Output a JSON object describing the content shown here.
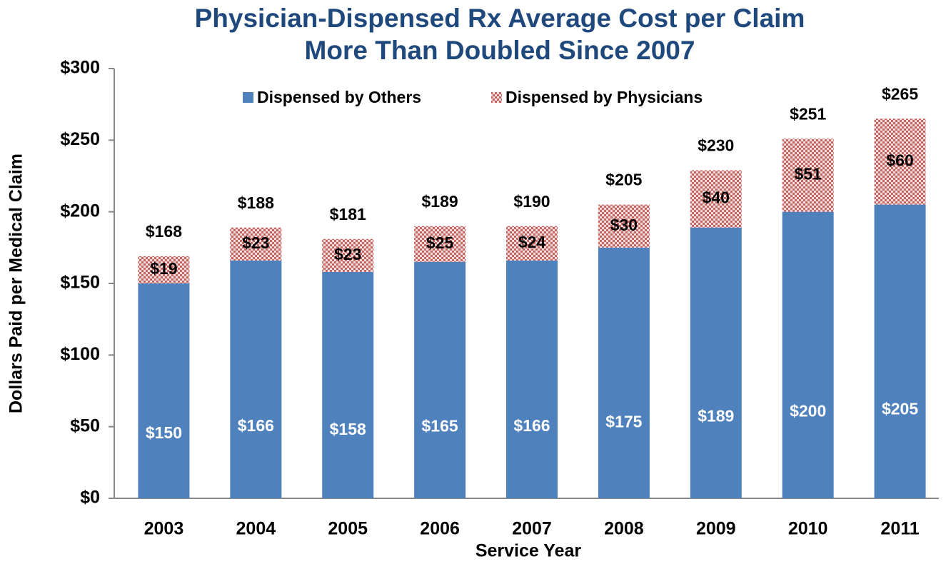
{
  "chart_data": {
    "type": "stacked-bar",
    "title": [
      "Physician-Dispensed Rx Average Cost per Claim",
      "More Than Doubled Since 2007"
    ],
    "xlabel": "Service Year",
    "ylabel": "Dollars Paid per Medical Claim",
    "categories": [
      "2003",
      "2004",
      "2005",
      "2006",
      "2007",
      "2008",
      "2009",
      "2010",
      "2011"
    ],
    "series": [
      {
        "name": "Dispensed by Others",
        "color": "#4f81bd",
        "values": [
          150,
          166,
          158,
          165,
          166,
          175,
          189,
          200,
          205
        ],
        "value_labels": [
          "$150",
          "$166",
          "$158",
          "$165",
          "$166",
          "$175",
          "$189",
          "$200",
          "$205"
        ]
      },
      {
        "name": "Dispensed by Physicians",
        "color": "#c0504d",
        "values": [
          19,
          23,
          23,
          25,
          24,
          30,
          40,
          51,
          60
        ],
        "value_labels": [
          "$19",
          "$23",
          "$23",
          "$25",
          "$24",
          "$30",
          "$40",
          "$51",
          "$60"
        ]
      }
    ],
    "totals": [
      168,
      188,
      181,
      189,
      190,
      205,
      230,
      251,
      265
    ],
    "total_labels": [
      "$168",
      "$188",
      "$181",
      "$189",
      "$190",
      "$205",
      "$230",
      "$251",
      "$265"
    ],
    "ylim": [
      0,
      300
    ],
    "yticks": [
      {
        "value": 0,
        "label": "$0"
      },
      {
        "value": 50,
        "label": "$50"
      },
      {
        "value": 100,
        "label": "$100"
      },
      {
        "value": 150,
        "label": "$150"
      },
      {
        "value": 200,
        "label": "$200"
      },
      {
        "value": 250,
        "label": "$250"
      },
      {
        "value": 300,
        "label": "$300"
      }
    ],
    "legend": "top"
  }
}
